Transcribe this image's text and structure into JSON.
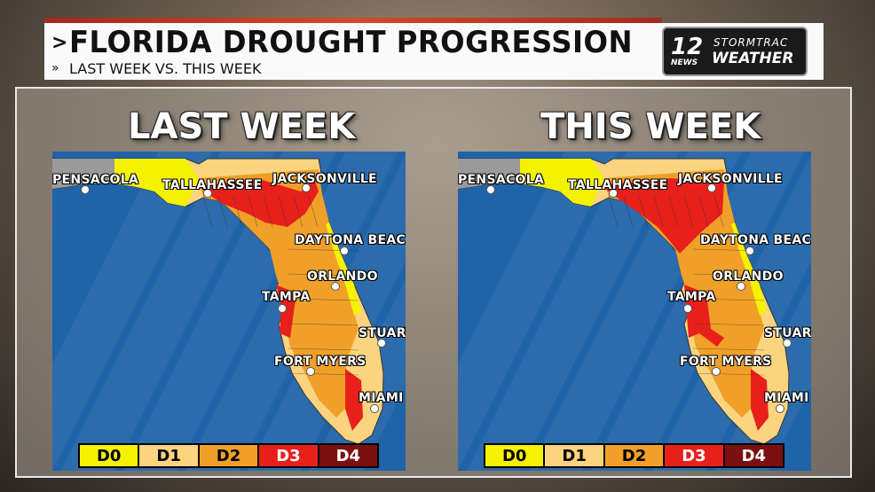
{
  "header": {
    "title": "FLORIDA DROUGHT PROGRESSION",
    "title_chevron": ">",
    "subtitle": "LAST WEEK VS. THIS WEEK",
    "subtitle_chevron": "»",
    "logo": {
      "number": "12",
      "news": "NEWS",
      "line1": "STORMTRAC",
      "line2": "WEATHER"
    }
  },
  "panels": [
    {
      "label": "LAST WEEK"
    },
    {
      "label": "THIS WEEK"
    }
  ],
  "cities": [
    "PENSACOLA",
    "TALLAHASSEE",
    "JACKSONVILLE",
    "DAYTONA BEACH",
    "ORLANDO",
    "TAMPA",
    "STUART",
    "FORT MYERS",
    "MIAMI"
  ],
  "legend": [
    {
      "label": "D0",
      "color": "#f5f200",
      "text_color": "#000000"
    },
    {
      "label": "D1",
      "color": "#fcd37f",
      "text_color": "#000000"
    },
    {
      "label": "D2",
      "color": "#f0a028",
      "text_color": "#000000"
    },
    {
      "label": "D3",
      "color": "#e8201c",
      "text_color": "#ffffff"
    },
    {
      "label": "D4",
      "color": "#7a1010",
      "text_color": "#ffffff"
    }
  ],
  "colors": {
    "ocean": "#1f63a8",
    "none": "#9a9a9a"
  }
}
